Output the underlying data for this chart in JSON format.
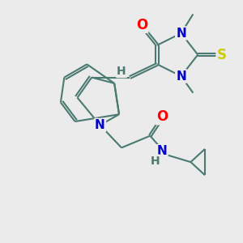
{
  "bg_color": "#ebebeb",
  "bond_color": "#4a7a70",
  "bond_width": 1.5,
  "atom_colors": {
    "O": "#ff0000",
    "N": "#0000cc",
    "S": "#cccc00",
    "H": "#4a7a70",
    "C": "#4a7a70"
  },
  "figsize": [
    3.0,
    3.0
  ],
  "dpi": 100
}
